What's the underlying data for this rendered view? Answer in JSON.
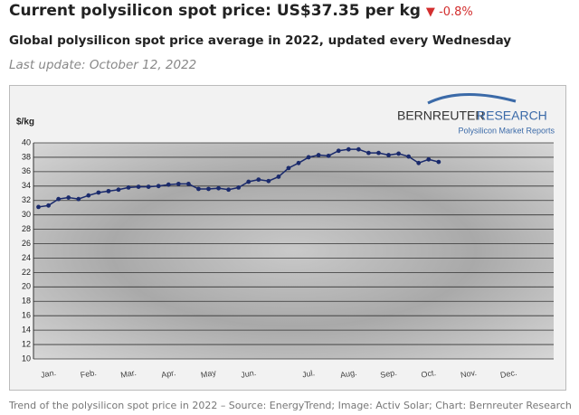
{
  "header": {
    "title": "Current polysilicon spot price: US$37.35 per kg",
    "change": "-0.8%",
    "subtitle": "Global polysilicon spot price average in 2022, updated every Wednesday",
    "last_update": "Last update: October 12, 2022"
  },
  "chart_data": {
    "type": "line",
    "y_label": "$/kg",
    "logo_name": "BERNREUTER",
    "logo_name2": "RESEARCH",
    "logo_tagline": "Polysilicon Market Reports",
    "categories": [
      null,
      "Jan.",
      null,
      null,
      null,
      "Feb.",
      null,
      null,
      null,
      "Mar.",
      null,
      null,
      null,
      "Apr.",
      null,
      null,
      null,
      "May",
      null,
      null,
      null,
      "Jun.",
      null,
      null,
      null,
      null,
      null,
      "Jul.",
      null,
      null,
      null,
      "Aug.",
      null,
      null,
      null,
      "Sep.",
      null,
      null,
      null,
      "Oct.",
      null,
      null,
      null,
      "Nov.",
      null,
      null,
      null,
      "Dec.",
      null,
      null,
      null,
      null
    ],
    "values": [
      31.1,
      31.3,
      32.2,
      32.4,
      32.2,
      32.7,
      33.1,
      33.3,
      33.5,
      33.8,
      33.9,
      33.9,
      34.0,
      34.2,
      34.3,
      34.3,
      33.6,
      33.6,
      33.7,
      33.5,
      33.8,
      34.6,
      34.9,
      34.7,
      35.3,
      36.5,
      37.2,
      38.0,
      38.3,
      38.2,
      38.9,
      39.1,
      39.1,
      38.6,
      38.6,
      38.3,
      38.5,
      38.1,
      37.2,
      37.7,
      37.35,
      null,
      null,
      null,
      null,
      null,
      null,
      null,
      null,
      null,
      null,
      null
    ],
    "color": "#1a2a6c",
    "ylim": [
      10,
      40
    ],
    "yticks": [
      10,
      12,
      14,
      16,
      18,
      20,
      22,
      24,
      26,
      28,
      30,
      32,
      34,
      36,
      38,
      40
    ],
    "grid": true
  },
  "caption": "Trend of the polysilicon spot price in 2022 – Source: EnergyTrend; Image: Activ Solar; Chart: Bernreuter Research"
}
